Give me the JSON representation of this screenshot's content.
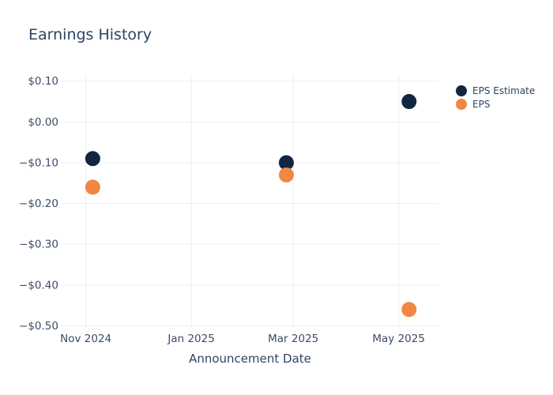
{
  "chart_data": {
    "type": "scatter",
    "title": "Earnings History",
    "xlabel": "Announcement Date",
    "ylabel": "",
    "x": [
      "2024-11-05",
      "2025-02-25",
      "2025-05-07"
    ],
    "series": [
      {
        "name": "EPS Estimate",
        "color": "#132640",
        "values": [
          -0.09,
          -0.1,
          0.05
        ]
      },
      {
        "name": "EPS",
        "color": "#f08742",
        "values": [
          -0.16,
          -0.13,
          -0.46
        ]
      }
    ],
    "x_ticks": [
      {
        "date": "2024-11-01",
        "label": "Nov 2024"
      },
      {
        "date": "2025-01-01",
        "label": "Jan 2025"
      },
      {
        "date": "2025-03-01",
        "label": "Mar 2025"
      },
      {
        "date": "2025-05-01",
        "label": "May 2025"
      }
    ],
    "y_ticks": [
      {
        "value": 0.1,
        "label": "$0.10"
      },
      {
        "value": 0.0,
        "label": "$0.00"
      },
      {
        "value": -0.1,
        "label": "−$0.10"
      },
      {
        "value": -0.2,
        "label": "−$0.20"
      },
      {
        "value": -0.3,
        "label": "−$0.30"
      },
      {
        "value": -0.4,
        "label": "−$0.40"
      },
      {
        "value": -0.5,
        "label": "−$0.50"
      }
    ],
    "x_domain": [
      "2024-10-18",
      "2025-05-24"
    ],
    "y_domain": [
      -0.505,
      0.115
    ],
    "grid": true,
    "legend_position": "right",
    "marker_diameter": 19,
    "legend_marker_diameter": 14,
    "colors": {
      "grid": "#e9edf5",
      "title_text": "#2c4562",
      "tick_text": "#3c4b66",
      "axis_title_text": "#2c4562",
      "legend_text": "#2c4562",
      "background": "#ffffff"
    }
  }
}
